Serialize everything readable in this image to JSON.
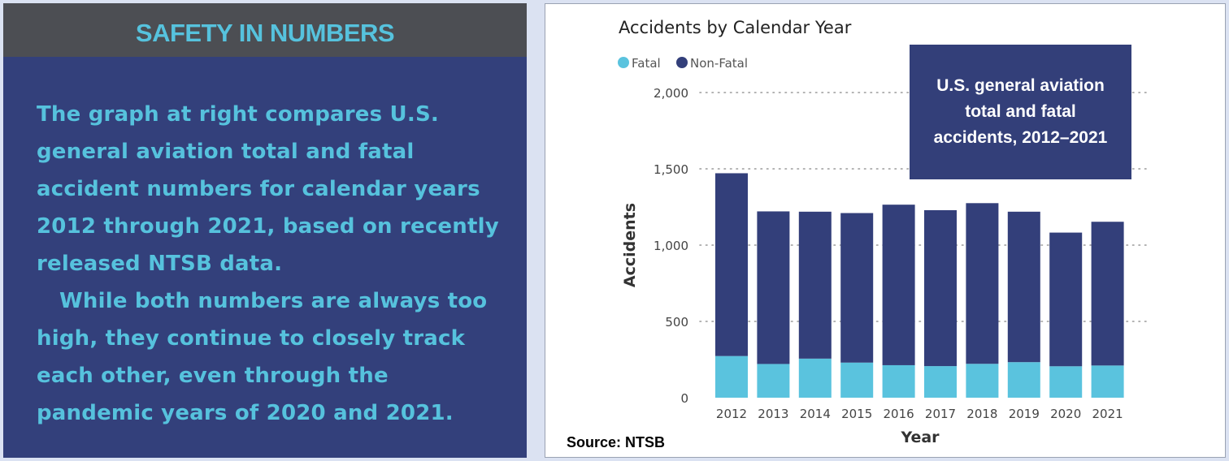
{
  "left_panel": {
    "title": "SAFETY IN NUMBERS",
    "paragraph1": "The graph at right compares U.S. general aviation total and fatal accident numbers for calendar years 2012 through 2021, based on recently released NTSB data.",
    "paragraph2": "While both numbers are always too high, they continue to closely track each other, even through the pandemic years of 2020 and 2021."
  },
  "callout": "U.S. general aviation total and fatal accidents, 2012–2021",
  "source": "Source: NTSB",
  "colors": {
    "fatal": "#5ac3de",
    "non_fatal": "#333f7a",
    "panel_bg": "#33407b",
    "header_bg": "#4c4e53",
    "accent_text": "#56c2dd"
  },
  "chart_data": {
    "type": "bar",
    "stacked": true,
    "title": "Accidents by Calendar Year",
    "xlabel": "Year",
    "ylabel": "Accidents",
    "ylim": [
      0,
      2000
    ],
    "yticks": [
      0,
      500,
      1000,
      1500,
      2000
    ],
    "ytick_labels": [
      "0",
      "500",
      "1,000",
      "1,500",
      "2,000"
    ],
    "grid": true,
    "legend_position": "top-left",
    "categories": [
      "2012",
      "2013",
      "2014",
      "2015",
      "2016",
      "2017",
      "2018",
      "2019",
      "2020",
      "2021"
    ],
    "series": [
      {
        "name": "Fatal",
        "values": [
          273,
          221,
          256,
          230,
          213,
          207,
          222,
          233,
          206,
          211
        ]
      },
      {
        "name": "Non-Fatal",
        "values": [
          1198,
          1000,
          963,
          980,
          1052,
          1022,
          1053,
          986,
          876,
          942
        ]
      }
    ]
  }
}
